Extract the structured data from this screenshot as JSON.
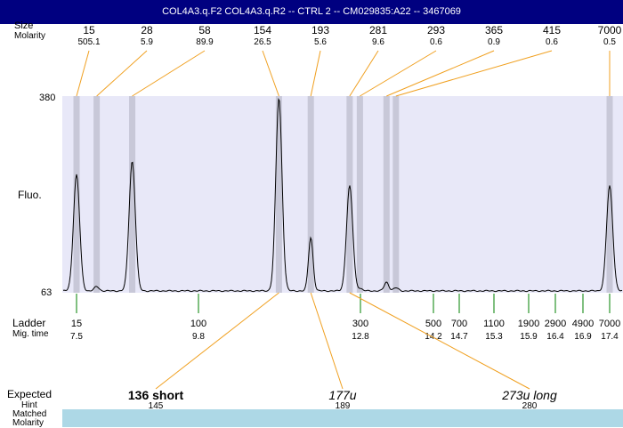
{
  "title": "COL4A3.q.F2  COL4A3.q.R2 -- CTRL 2 -- CM029835:A22 -- 3467069",
  "header_rows": {
    "size_label": "Size",
    "molarity_label": "Molarity"
  },
  "y_axis": {
    "label": "Fluo.",
    "max_label": "380",
    "min_label": "63"
  },
  "bottom_rows": {
    "ladder_label": "Ladder",
    "migtime_label": "Mig. time",
    "expected_label": "Expected",
    "hint_label": "Hint",
    "matched_label": "Matched",
    "molarity_label": "Molarity"
  },
  "colors": {
    "title_bg": "#000080",
    "plot_bg": "#e8e8f8",
    "band": "#c8c8d8",
    "callout": "#f0a020",
    "ladder_tick": "#008000",
    "table_bg": "#add8e6",
    "trace": "#000000"
  },
  "chart_data": {
    "type": "line",
    "x_unit": "migration time",
    "ylim": [
      63,
      380
    ],
    "peaks": [
      {
        "size": "15",
        "molarity": "505.1",
        "time": 7.5,
        "height": 253
      },
      {
        "size": "28",
        "molarity": "5.9",
        "time": 7.88,
        "height": 73
      },
      {
        "size": "58",
        "molarity": "89.9",
        "time": 8.55,
        "height": 275
      },
      {
        "size": "154",
        "molarity": "26.5",
        "time": 11.29,
        "height": 377
      },
      {
        "size": "193",
        "molarity": "5.6",
        "time": 11.88,
        "height": 152
      },
      {
        "size": "281",
        "molarity": "9.6",
        "time": 12.6,
        "height": 235
      },
      {
        "size": "293",
        "molarity": "0.6",
        "time": 12.79,
        "height": 70
      },
      {
        "size": "365",
        "molarity": "0.9",
        "time": 13.3,
        "height": 80
      },
      {
        "size": "415",
        "molarity": "0.6",
        "time": 13.48,
        "height": 71
      },
      {
        "size": "7000",
        "molarity": "0.5",
        "time": 17.4,
        "height": 235
      }
    ],
    "ladder": [
      {
        "size": "15",
        "time": "7.5"
      },
      {
        "size": "100",
        "time": "9.8"
      },
      {
        "size": "300",
        "time": "12.8"
      },
      {
        "size": "500",
        "time": "14.2"
      },
      {
        "size": "700",
        "time": "14.7"
      },
      {
        "size": "1100",
        "time": "15.3"
      },
      {
        "size": "1900",
        "time": "15.9"
      },
      {
        "size": "2900",
        "time": "16.4"
      },
      {
        "size": "4900",
        "time": "16.9"
      },
      {
        "size": "7000",
        "time": "17.4"
      }
    ],
    "expected": [
      {
        "label": "136 short",
        "hint": "145",
        "matched": "154",
        "molarity": "26.5",
        "peak_time": 11.29,
        "bold": true
      },
      {
        "label": "177u",
        "hint": "189",
        "matched": "193",
        "molarity": "5.6",
        "peak_time": 11.88,
        "bold": false
      },
      {
        "label": "273u long",
        "hint": "280",
        "matched": "281",
        "molarity": "9.6",
        "peak_time": 12.6,
        "bold": false
      }
    ]
  }
}
